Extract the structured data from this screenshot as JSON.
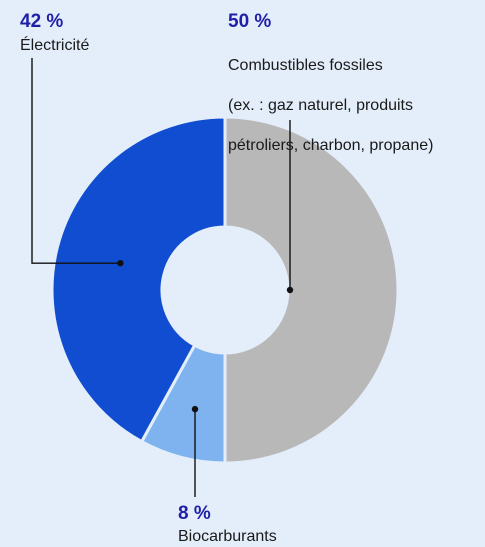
{
  "chart_data": {
    "type": "pie",
    "donut": true,
    "slices": [
      {
        "label_lines": [
          "Combustibles fossiles",
          "(ex. : gaz naturel, produits",
          "pétroliers, charbon, propane)"
        ],
        "value": 50,
        "value_label": "50 %",
        "color": "#b8b8b8"
      },
      {
        "label_lines": [
          "Biocarburants"
        ],
        "value": 8,
        "value_label": "8 %",
        "color": "#7eb3ef"
      },
      {
        "label_lines": [
          "Électricité"
        ],
        "value": 42,
        "value_label": "42 %",
        "color": "#114dd0"
      }
    ]
  }
}
